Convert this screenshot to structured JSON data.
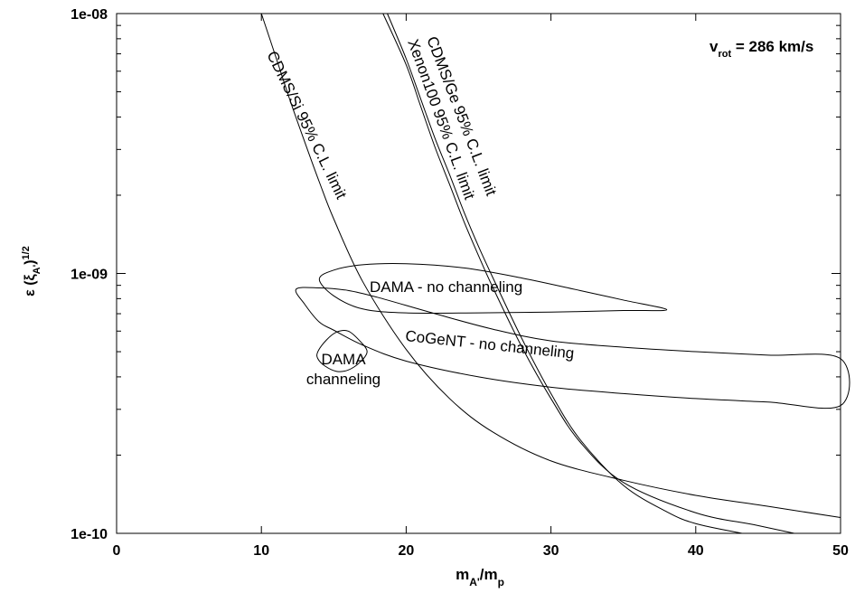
{
  "chart_data": {
    "type": "line",
    "title": "",
    "xlabel": {
      "main": "m",
      "sub1": "A'",
      "mid": "/m",
      "sub2": "p"
    },
    "ylabel": {
      "pre": "ε (ξ",
      "sub": "A'",
      "post": ")",
      "sup": "1/2"
    },
    "xlim": [
      0,
      50
    ],
    "ylim": [
      1e-10,
      1e-08
    ],
    "yscale": "log",
    "grid": false,
    "x_ticks": [
      {
        "value": 0,
        "label": "0"
      },
      {
        "value": 10,
        "label": "10"
      },
      {
        "value": 20,
        "label": "20"
      },
      {
        "value": 30,
        "label": "30"
      },
      {
        "value": 40,
        "label": "40"
      },
      {
        "value": 50,
        "label": "50"
      }
    ],
    "y_ticks": [
      {
        "value": 1e-10,
        "label": "1e-10"
      },
      {
        "value": 1e-09,
        "label": "1e-09"
      },
      {
        "value": 1e-08,
        "label": "1e-08"
      }
    ],
    "vrot_label": {
      "main": "v",
      "sub": "rot",
      "rest": " = 286 km/s"
    },
    "series": [
      {
        "name": "CDMS/Si 95% C.L. limit",
        "points": [
          [
            10,
            1e-08
          ],
          [
            11,
            6.8e-09
          ],
          [
            12,
            4.6e-09
          ],
          [
            13,
            3.2e-09
          ],
          [
            14,
            2.25e-09
          ],
          [
            15,
            1.62e-09
          ],
          [
            17,
            9.3e-10
          ],
          [
            20,
            5.1e-10
          ],
          [
            23,
            3.3e-10
          ],
          [
            26,
            2.45e-10
          ],
          [
            30,
            1.9e-10
          ],
          [
            35,
            1.6e-10
          ],
          [
            40,
            1.4e-10
          ],
          [
            45,
            1.27e-10
          ],
          [
            50,
            1.15e-10
          ]
        ]
      },
      {
        "name": "CDMS/Ge 95% C.L. limit",
        "points": [
          [
            18.7,
            1e-08
          ],
          [
            20,
            6.7e-09
          ],
          [
            21,
            4.7e-09
          ],
          [
            22,
            3.3e-09
          ],
          [
            23,
            2.4e-09
          ],
          [
            24,
            1.72e-09
          ],
          [
            25,
            1.27e-09
          ],
          [
            26,
            9.6e-10
          ],
          [
            28,
            5.6e-10
          ],
          [
            30,
            3.45e-10
          ],
          [
            32,
            2.3e-10
          ],
          [
            35,
            1.53e-10
          ],
          [
            38,
            1.21e-10
          ],
          [
            40,
            1.09e-10
          ],
          [
            43.2,
            1e-10
          ]
        ]
      },
      {
        "name": "Xenon100 95% C.L. limit",
        "points": [
          [
            18.4,
            1e-08
          ],
          [
            20,
            6.35e-09
          ],
          [
            21,
            4.4e-09
          ],
          [
            22,
            3.05e-09
          ],
          [
            23,
            2.2e-09
          ],
          [
            24,
            1.58e-09
          ],
          [
            25,
            1.17e-09
          ],
          [
            26,
            8.8e-10
          ],
          [
            28,
            5.2e-10
          ],
          [
            30,
            3.3e-10
          ],
          [
            32,
            2.25e-10
          ],
          [
            35,
            1.57e-10
          ],
          [
            40,
            1.2e-10
          ],
          [
            44,
            1.08e-10
          ],
          [
            46.8,
            1e-10
          ]
        ]
      },
      {
        "name": "CoGeNT - no channeling",
        "closed": true,
        "points": [
          [
            12.4,
            8.7e-10
          ],
          [
            14,
            8.8e-10
          ],
          [
            16,
            8.6e-10
          ],
          [
            18,
            8.1e-10
          ],
          [
            22,
            7e-10
          ],
          [
            26,
            6.1e-10
          ],
          [
            30,
            5.5e-10
          ],
          [
            35,
            5.2e-10
          ],
          [
            40,
            5e-10
          ],
          [
            45,
            4.85e-10
          ],
          [
            50,
            4.7e-10
          ],
          [
            50,
            3.1e-10
          ],
          [
            45,
            3.2e-10
          ],
          [
            40,
            3.3e-10
          ],
          [
            35,
            3.45e-10
          ],
          [
            30,
            3.65e-10
          ],
          [
            25,
            4e-10
          ],
          [
            20,
            4.6e-10
          ],
          [
            17,
            5.3e-10
          ],
          [
            15,
            6.05e-10
          ],
          [
            14,
            6.5e-10
          ],
          [
            13,
            7.6e-10
          ],
          [
            12.4,
            8.7e-10
          ]
        ]
      },
      {
        "name": "DAMA - no channeling",
        "closed": true,
        "points": [
          [
            14,
            9.5e-10
          ],
          [
            15,
            1.03e-09
          ],
          [
            17,
            1.08e-09
          ],
          [
            20,
            1.09e-09
          ],
          [
            24,
            1.05e-09
          ],
          [
            28,
            9.6e-10
          ],
          [
            32,
            8.6e-10
          ],
          [
            35,
            7.9e-10
          ],
          [
            38,
            7.25e-10
          ],
          [
            35,
            7.2e-10
          ],
          [
            30,
            7.1e-10
          ],
          [
            25,
            7.05e-10
          ],
          [
            20,
            7.05e-10
          ],
          [
            17,
            7.3e-10
          ],
          [
            15,
            8.2e-10
          ],
          [
            14,
            9.5e-10
          ]
        ]
      },
      {
        "name": "DAMA channeling",
        "closed": true,
        "points": [
          [
            13.9,
            5e-10
          ],
          [
            14.5,
            5.55e-10
          ],
          [
            15.2,
            5.95e-10
          ],
          [
            16,
            6e-10
          ],
          [
            16.8,
            5.5e-10
          ],
          [
            17.3,
            5e-10
          ],
          [
            16.8,
            4.55e-10
          ],
          [
            16,
            4.25e-10
          ],
          [
            15.2,
            4.2e-10
          ],
          [
            14.4,
            4.4e-10
          ],
          [
            13.9,
            4.7e-10
          ],
          [
            13.9,
            5e-10
          ]
        ]
      }
    ],
    "annotations": [
      {
        "text": "CDMS/Si 95% C.L. limit"
      },
      {
        "text": "CDMS/Ge 95% C.L. limit"
      },
      {
        "text": "Xenon100 95% C.L. limit"
      },
      {
        "text": "DAMA - no channeling"
      },
      {
        "text": "CoGeNT - no channeling"
      },
      {
        "text": "DAMA"
      },
      {
        "text": "channeling"
      }
    ]
  }
}
